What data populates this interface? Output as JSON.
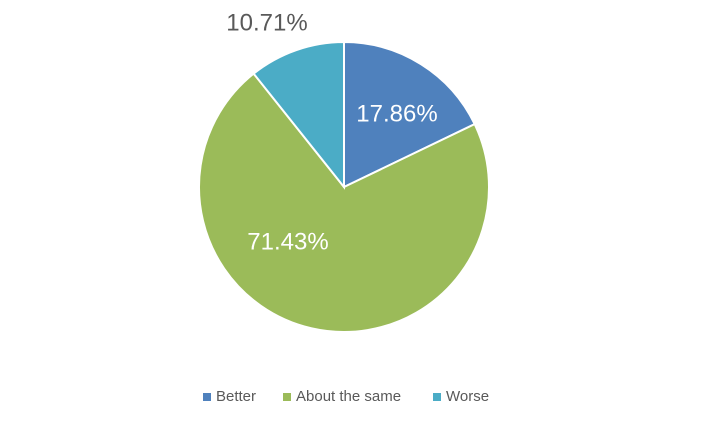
{
  "chart_data": {
    "type": "pie",
    "categories": [
      "Better",
      "About the same",
      "Worse"
    ],
    "values": [
      17.86,
      71.43,
      10.71
    ],
    "value_labels": [
      "17.86%",
      "71.43%",
      "10.71%"
    ],
    "colors": [
      "#4f81bd",
      "#9bbb59",
      "#4bacc6"
    ],
    "legend": "bottom"
  }
}
